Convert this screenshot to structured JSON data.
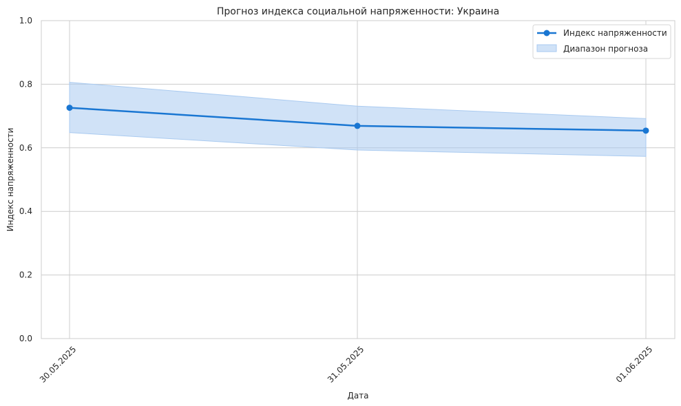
{
  "chart_data": {
    "type": "line",
    "title": "Прогноз индекса социальной напряженности: Украина",
    "xlabel": "Дата",
    "ylabel": "Индекс напряженности",
    "categories": [
      "30.05.2025",
      "31.05.2025",
      "01.06.2025"
    ],
    "series": [
      {
        "name": "Индекс напряженности",
        "values": [
          0.726,
          0.669,
          0.654
        ],
        "color": "#1976d2"
      }
    ],
    "band": {
      "name": "Диапазон прогноза",
      "lower": [
        0.648,
        0.593,
        0.573
      ],
      "upper": [
        0.806,
        0.731,
        0.692
      ],
      "color": "#a9caf0"
    },
    "ylim": [
      0,
      1
    ],
    "yticks": [
      "0.0",
      "0.2",
      "0.4",
      "0.6",
      "0.8",
      "1.0"
    ],
    "grid": true,
    "legend": "top-right"
  }
}
